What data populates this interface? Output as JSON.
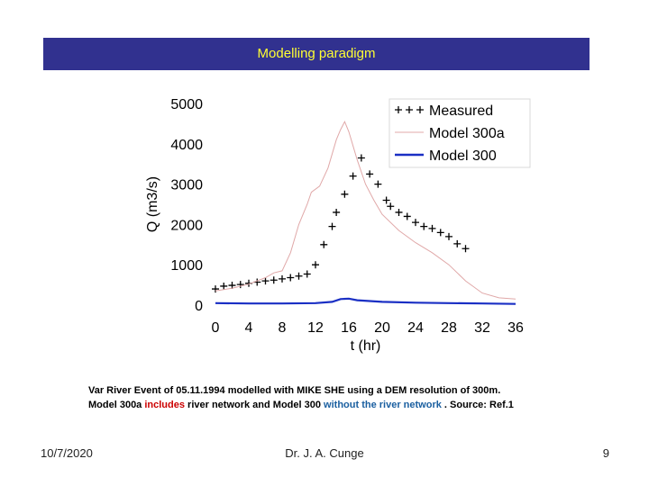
{
  "header": {
    "title": "Modelling paradigm"
  },
  "caption": {
    "line1": "Var River Event of 05.11.1994 modelled with MIKE SHE using a DEM resolution of 300m.",
    "line2_a": "Model 300a ",
    "line2_b": "includes",
    "line2_c": " river network and Model 300 ",
    "line2_d": "without the river network",
    "line2_e": " . Source: Ref.1"
  },
  "footer": {
    "date": "10/7/2020",
    "author": "Dr. J. A. Cunge",
    "page": "9"
  },
  "colors": {
    "title_bg": "#31318f",
    "title_text": "#ffff33",
    "model300a": "#e0a8a8",
    "model300": "#1a2fc4",
    "measured": "#000000"
  },
  "chart_data": {
    "type": "line",
    "xlabel": "t (hr)",
    "ylabel": "Q (m3/s)",
    "xlim": [
      0,
      36
    ],
    "ylim": [
      0,
      5000
    ],
    "xticks": [
      0,
      4,
      8,
      12,
      16,
      20,
      24,
      28,
      32,
      36
    ],
    "yticks": [
      0,
      1000,
      2000,
      3000,
      4000,
      5000
    ],
    "legend_position": "top-right",
    "grid": false,
    "series": [
      {
        "name": "Measured",
        "style": "markers-plus",
        "points": [
          [
            0,
            400
          ],
          [
            1,
            470
          ],
          [
            2,
            490
          ],
          [
            3,
            510
          ],
          [
            4,
            540
          ],
          [
            5,
            570
          ],
          [
            6,
            600
          ],
          [
            7,
            620
          ],
          [
            8,
            650
          ],
          [
            9,
            680
          ],
          [
            10,
            720
          ],
          [
            11,
            770
          ],
          [
            12,
            1000
          ],
          [
            13,
            1500
          ],
          [
            14,
            1950
          ],
          [
            14.5,
            2300
          ],
          [
            15.5,
            2750
          ],
          [
            16.5,
            3200
          ],
          [
            17.5,
            3650
          ],
          [
            18.5,
            3250
          ],
          [
            19.5,
            3000
          ],
          [
            20.5,
            2600
          ],
          [
            21,
            2450
          ],
          [
            22,
            2300
          ],
          [
            23,
            2200
          ],
          [
            24,
            2050
          ],
          [
            25,
            1950
          ],
          [
            26,
            1900
          ],
          [
            27,
            1800
          ],
          [
            28,
            1700
          ],
          [
            29,
            1520
          ],
          [
            30,
            1400
          ]
        ]
      },
      {
        "name": "Model 300a",
        "style": "thin-line",
        "points": [
          [
            0,
            350
          ],
          [
            2,
            420
          ],
          [
            4,
            520
          ],
          [
            6,
            680
          ],
          [
            7,
            800
          ],
          [
            8,
            850
          ],
          [
            9,
            1300
          ],
          [
            10,
            2000
          ],
          [
            11,
            2500
          ],
          [
            11.5,
            2800
          ],
          [
            12.5,
            2950
          ],
          [
            13.5,
            3400
          ],
          [
            14.5,
            4100
          ],
          [
            15,
            4350
          ],
          [
            15.5,
            4550
          ],
          [
            16,
            4300
          ],
          [
            17,
            3600
          ],
          [
            18,
            3000
          ],
          [
            19,
            2600
          ],
          [
            20,
            2250
          ],
          [
            22,
            1850
          ],
          [
            24,
            1550
          ],
          [
            26,
            1300
          ],
          [
            28,
            1000
          ],
          [
            30,
            600
          ],
          [
            32,
            300
          ],
          [
            34,
            180
          ],
          [
            36,
            150
          ]
        ]
      },
      {
        "name": "Model 300",
        "style": "thick-line",
        "points": [
          [
            0,
            50
          ],
          [
            4,
            40
          ],
          [
            8,
            40
          ],
          [
            12,
            50
          ],
          [
            14,
            80
          ],
          [
            15,
            150
          ],
          [
            16,
            160
          ],
          [
            17,
            120
          ],
          [
            20,
            80
          ],
          [
            24,
            60
          ],
          [
            28,
            50
          ],
          [
            32,
            40
          ],
          [
            36,
            30
          ]
        ]
      }
    ]
  }
}
